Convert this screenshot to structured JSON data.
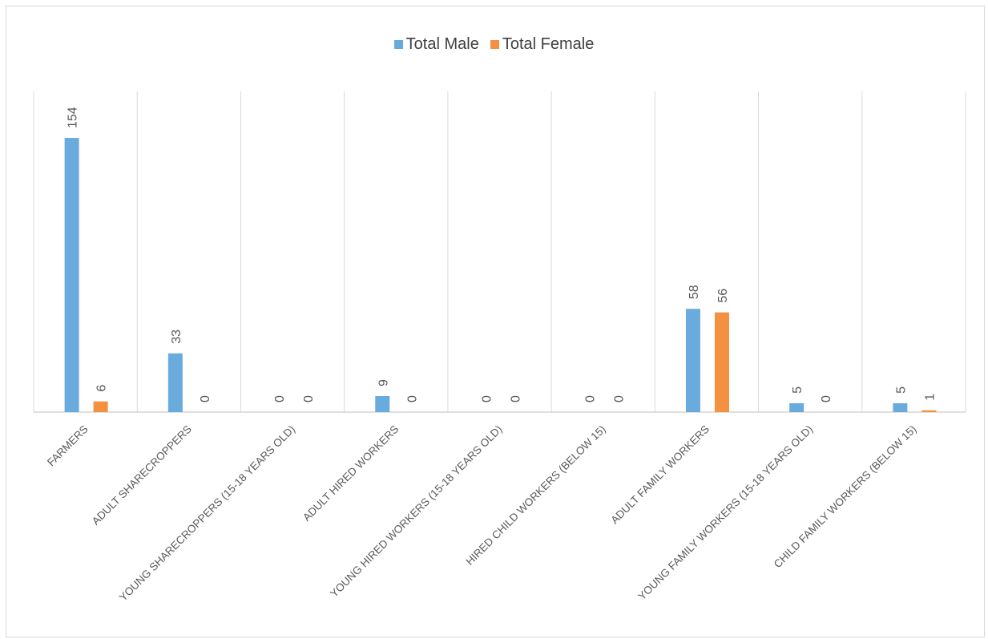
{
  "chart_data": {
    "type": "bar",
    "title": "",
    "xlabel": "",
    "ylabel": "",
    "ylim": [
      0,
      154
    ],
    "legend_position": "top",
    "grid": "vertical-category-separators",
    "categories": [
      "FARMERS",
      "ADULT SHARECROPPERS",
      "YOUNG SHARECROPPERS (15-18 YEARS OLD)",
      "ADULT HIRED WORKERS",
      "YOUNG HIRED WORKERS (15-18 YEARS OLD)",
      "HIRED CHILD WORKERS (BELOW 15)",
      "ADULT FAMILY WORKERS",
      "YOUNG FAMILY WORKERS (15-18 YEARS OLD)",
      "CHILD FAMILY WORKERS (BELOW 15)"
    ],
    "series": [
      {
        "name": "Total Male",
        "color": "#6aabdd",
        "values": [
          154,
          33,
          0,
          9,
          0,
          0,
          58,
          5,
          5
        ]
      },
      {
        "name": "Total Female",
        "color": "#f39140",
        "values": [
          6,
          0,
          0,
          0,
          0,
          0,
          56,
          0,
          1
        ]
      }
    ]
  }
}
